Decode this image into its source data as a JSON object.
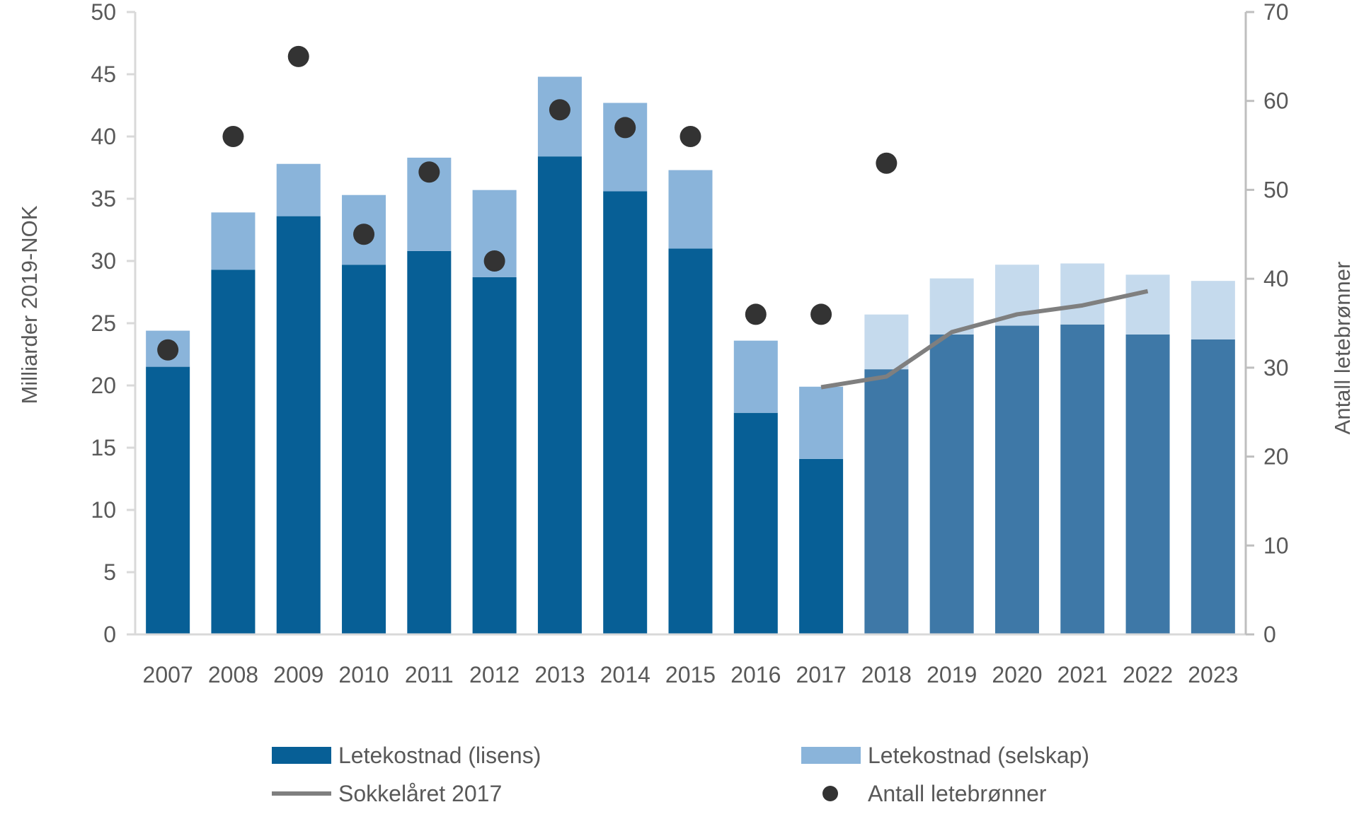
{
  "chart_data": {
    "type": "bar",
    "stacked": true,
    "categories": [
      "2007",
      "2008",
      "2009",
      "2010",
      "2011",
      "2012",
      "2013",
      "2014",
      "2015",
      "2016",
      "2017",
      "2018",
      "2019",
      "2020",
      "2021",
      "2022",
      "2023"
    ],
    "ylabel": "Milliarder 2019-NOK",
    "y2label": "Antall letebrønner",
    "ylim": [
      0,
      50
    ],
    "yticks": [
      0,
      5,
      10,
      15,
      20,
      25,
      30,
      35,
      40,
      45,
      50
    ],
    "y2lim": [
      0,
      70
    ],
    "y2ticks": [
      0,
      10,
      20,
      30,
      40,
      50,
      60,
      70
    ],
    "grid": false,
    "legend_position": "bottom",
    "series": [
      {
        "name": "Letekostnad (lisens)",
        "type": "bar",
        "axis": "left",
        "color": "#075f96",
        "projected_color": "#3e78a7",
        "values": [
          21.5,
          29.3,
          33.6,
          29.7,
          30.8,
          28.7,
          38.4,
          35.6,
          31.0,
          17.8,
          14.1,
          21.3,
          24.1,
          24.8,
          24.9,
          24.1,
          23.7
        ]
      },
      {
        "name": "Letekostnad (selskap)",
        "type": "bar",
        "axis": "left",
        "color": "#8ab4da",
        "projected_color": "#c5daed",
        "values": [
          2.9,
          4.6,
          4.2,
          5.6,
          7.5,
          7.0,
          6.4,
          7.1,
          6.3,
          5.8,
          5.8,
          4.4,
          4.5,
          4.9,
          4.9,
          4.8,
          4.7
        ]
      },
      {
        "name": "Sokkelåret 2017",
        "type": "line",
        "axis": "right",
        "color": "#7f7f7f",
        "x": [
          "2017",
          "2018",
          "2019",
          "2020",
          "2021",
          "2022"
        ],
        "values": [
          27.8,
          29,
          34,
          36,
          37,
          38.6
        ]
      },
      {
        "name": "Antall letebrønner",
        "type": "scatter",
        "axis": "right",
        "color": "#333333",
        "x": [
          "2007",
          "2008",
          "2009",
          "2010",
          "2011",
          "2012",
          "2013",
          "2014",
          "2015",
          "2016",
          "2017",
          "2018"
        ],
        "values": [
          32,
          56,
          65,
          45,
          52,
          42,
          59,
          57,
          56,
          36,
          36,
          53
        ]
      }
    ],
    "projected_from": "2018"
  }
}
